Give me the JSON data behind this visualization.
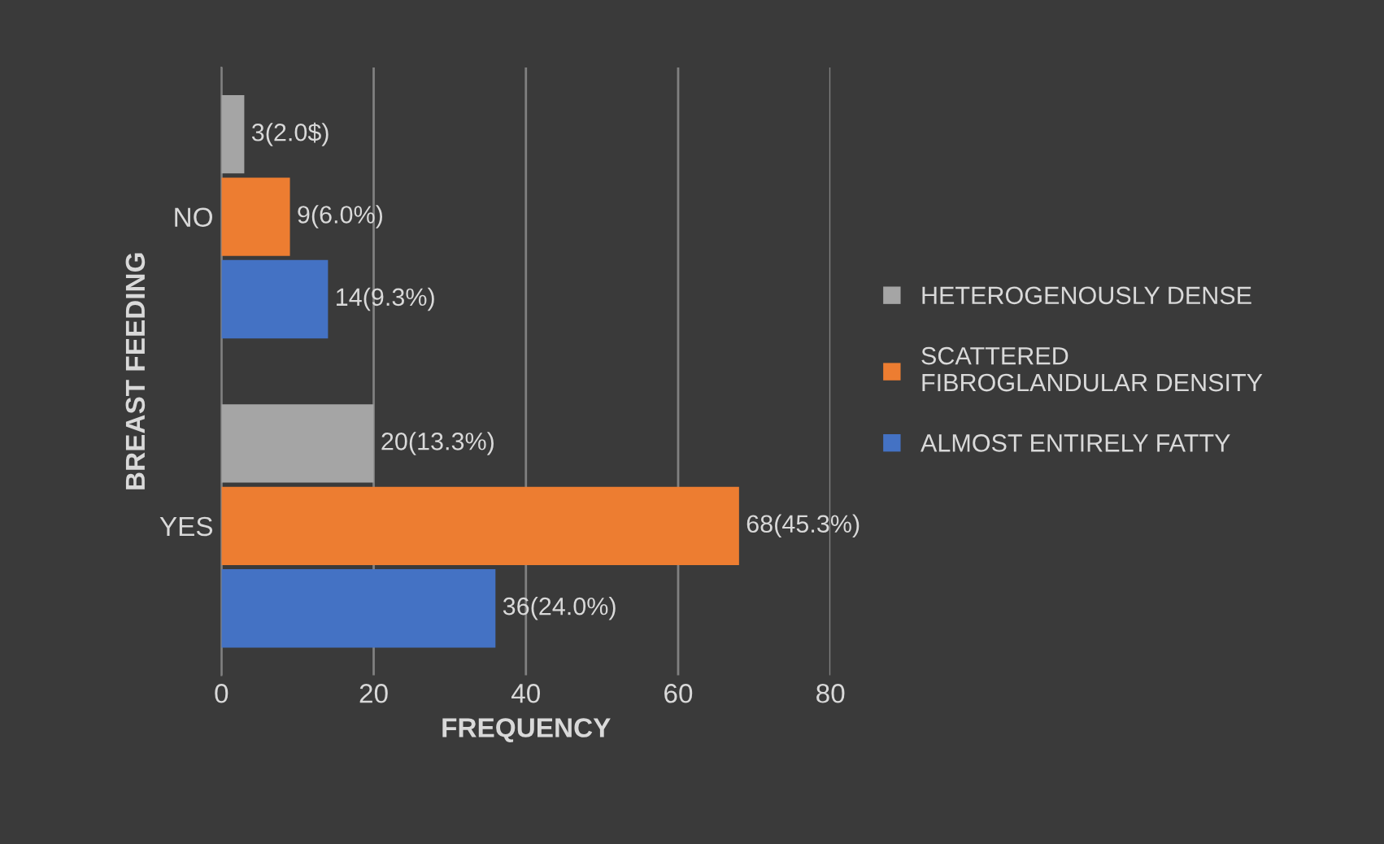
{
  "chart_data": {
    "type": "bar",
    "orientation": "horizontal",
    "xlabel": "FREQUENCY",
    "ylabel": "BREAST FEEDING",
    "categories": [
      "NO",
      "YES"
    ],
    "series": [
      {
        "name": "HETEROGENOUSLY DENSE",
        "color": "#a5a5a5",
        "values": [
          3,
          20
        ],
        "value_labels": [
          "3(2.0$)",
          "20(13.3%)"
        ]
      },
      {
        "name": "SCATTERED FIBROGLANDULAR DENSITY",
        "color": "#ed7d31",
        "values": [
          9,
          68
        ],
        "value_labels": [
          "9(6.0%)",
          "68(45.3%)"
        ]
      },
      {
        "name": "ALMOST ENTIRELY FATTY",
        "color": "#4472c4",
        "values": [
          14,
          36
        ],
        "value_labels": [
          "14(9.3%)",
          "36(24.0%)"
        ]
      }
    ],
    "xlim": [
      0,
      80
    ],
    "xticks": [
      0,
      20,
      40,
      60,
      80
    ],
    "grid": "x",
    "legend": "right"
  }
}
